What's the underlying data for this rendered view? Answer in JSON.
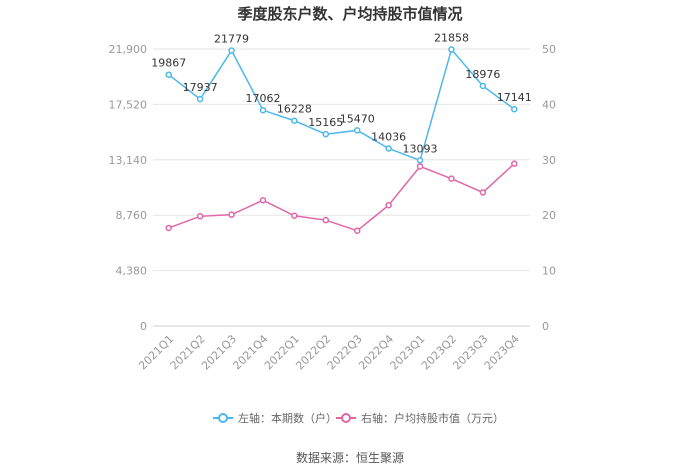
{
  "title": "季度股东户数、户均持股市值情况",
  "source": "数据来源：恒生聚源",
  "legend": [
    {
      "label": "左轴：本期数（户）",
      "color": "#4db8ec"
    },
    {
      "label": "右轴：户均持股市值（万元）",
      "color": "#e066a8"
    }
  ],
  "chart_data": {
    "type": "line",
    "categories": [
      "2021Q1",
      "2021Q2",
      "2021Q3",
      "2021Q4",
      "2022Q1",
      "2022Q2",
      "2022Q3",
      "2022Q4",
      "2023Q1",
      "2023Q2",
      "2023Q3",
      "2023Q4"
    ],
    "left_axis": {
      "ticks": [
        "0",
        "4,380",
        "8,760",
        "13,140",
        "17,520",
        "21,900"
      ],
      "ylim": [
        0,
        21900
      ]
    },
    "right_axis": {
      "ticks": [
        "0",
        "10",
        "20",
        "30",
        "40",
        "50"
      ],
      "ylim": [
        0,
        50
      ]
    },
    "grid": true,
    "legend_position": "bottom",
    "series": [
      {
        "name": "左轴：本期数（户）",
        "axis": "left",
        "color": "#4db8ec",
        "values": [
          19867,
          17937,
          21779,
          17062,
          16228,
          15165,
          15470,
          14036,
          13093,
          21858,
          18976,
          17141
        ],
        "labels": [
          "19867",
          "17937",
          "21779",
          "17062",
          "16228",
          "15165",
          "15470",
          "14036",
          "13093",
          "21858",
          "18976",
          "17141"
        ]
      },
      {
        "name": "右轴：户均持股市值（万元）",
        "axis": "right",
        "color": "#e066a8",
        "values": [
          17.7,
          19.8,
          20.1,
          22.7,
          19.9,
          19.1,
          17.2,
          21.8,
          28.8,
          26.6,
          24.1,
          29.3
        ]
      }
    ]
  }
}
